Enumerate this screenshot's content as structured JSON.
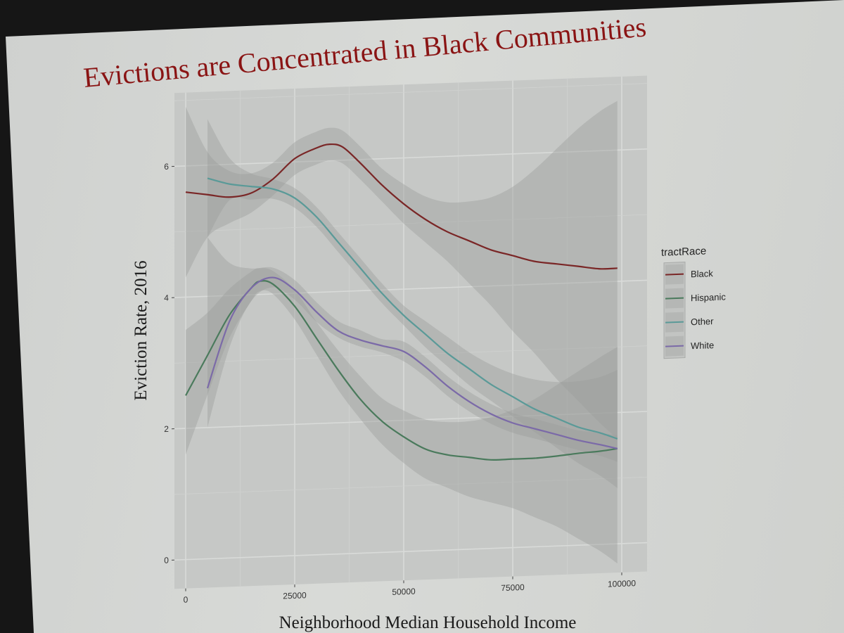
{
  "slide": {
    "title": "Evictions are Concentrated in Black Communities"
  },
  "chart_data": {
    "type": "line",
    "title": "Evictions are Concentrated in Black Communities",
    "xlabel": "Neighborhood Median Household Income",
    "ylabel": "Eviction Rate, 2016",
    "xlim": [
      0,
      100000
    ],
    "ylim": [
      -0.3,
      7.0
    ],
    "x_ticks": [
      0,
      25000,
      50000,
      75000,
      100000
    ],
    "x_tick_labels": [
      "0",
      "25000",
      "50000",
      "75000",
      "100000"
    ],
    "y_ticks": [
      0,
      2,
      4,
      6
    ],
    "y_tick_labels": [
      "0",
      "2",
      "4",
      "6"
    ],
    "grid": true,
    "legend": {
      "title": "tractRace",
      "position": "right"
    },
    "series": [
      {
        "name": "Black",
        "color": "#7a2626",
        "x": [
          0,
          5000,
          10000,
          15000,
          20000,
          25000,
          30000,
          33000,
          36000,
          40000,
          45000,
          50000,
          55000,
          60000,
          65000,
          70000,
          75000,
          80000,
          85000,
          90000,
          95000,
          99000
        ],
        "y": [
          5.6,
          5.55,
          5.5,
          5.55,
          5.75,
          6.05,
          6.2,
          6.25,
          6.2,
          5.95,
          5.6,
          5.3,
          5.05,
          4.85,
          4.7,
          4.55,
          4.45,
          4.35,
          4.3,
          4.25,
          4.2,
          4.2
        ],
        "lower": [
          4.3,
          4.9,
          5.1,
          5.25,
          5.5,
          5.8,
          5.95,
          6.0,
          5.95,
          5.7,
          5.35,
          5.0,
          4.7,
          4.4,
          4.05,
          3.7,
          3.3,
          2.95,
          2.55,
          2.2,
          1.85,
          1.6
        ],
        "upper": [
          6.9,
          6.2,
          5.9,
          5.85,
          6.0,
          6.3,
          6.45,
          6.5,
          6.45,
          6.2,
          5.85,
          5.6,
          5.4,
          5.3,
          5.3,
          5.35,
          5.5,
          5.75,
          6.05,
          6.35,
          6.6,
          6.75
        ]
      },
      {
        "name": "Hispanic",
        "color": "#4a7a5c",
        "x": [
          0,
          5000,
          10000,
          15000,
          17000,
          20000,
          25000,
          30000,
          35000,
          40000,
          45000,
          50000,
          55000,
          60000,
          65000,
          70000,
          75000,
          80000,
          85000,
          90000,
          95000,
          99000
        ],
        "y": [
          2.5,
          3.1,
          3.7,
          4.1,
          4.2,
          4.15,
          3.8,
          3.3,
          2.8,
          2.35,
          2.0,
          1.75,
          1.55,
          1.45,
          1.4,
          1.35,
          1.35,
          1.35,
          1.37,
          1.4,
          1.42,
          1.45
        ],
        "lower": [
          1.6,
          2.5,
          3.35,
          3.9,
          4.05,
          4.0,
          3.6,
          3.05,
          2.5,
          2.05,
          1.65,
          1.35,
          1.1,
          0.95,
          0.8,
          0.7,
          0.6,
          0.45,
          0.3,
          0.1,
          -0.1,
          -0.3
        ],
        "upper": [
          3.5,
          3.75,
          4.1,
          4.35,
          4.4,
          4.35,
          4.05,
          3.55,
          3.1,
          2.7,
          2.35,
          2.15,
          2.0,
          1.95,
          1.95,
          2.0,
          2.1,
          2.25,
          2.45,
          2.65,
          2.85,
          3.0
        ]
      },
      {
        "name": "Other",
        "color": "#5a9a98",
        "x": [
          5000,
          10000,
          15000,
          20000,
          25000,
          30000,
          35000,
          40000,
          45000,
          50000,
          55000,
          60000,
          65000,
          70000,
          75000,
          80000,
          85000,
          90000,
          95000,
          99000
        ],
        "y": [
          5.8,
          5.7,
          5.65,
          5.6,
          5.45,
          5.15,
          4.75,
          4.35,
          3.95,
          3.6,
          3.3,
          3.0,
          2.75,
          2.5,
          2.3,
          2.1,
          1.95,
          1.8,
          1.7,
          1.6
        ],
        "lower": [
          4.9,
          5.45,
          5.45,
          5.45,
          5.3,
          5.0,
          4.6,
          4.2,
          3.8,
          3.45,
          3.1,
          2.8,
          2.5,
          2.25,
          2.0,
          1.75,
          1.5,
          1.25,
          1.05,
          0.85
        ],
        "upper": [
          6.7,
          6.1,
          5.85,
          5.75,
          5.6,
          5.3,
          4.9,
          4.5,
          4.1,
          3.75,
          3.5,
          3.25,
          3.0,
          2.8,
          2.65,
          2.55,
          2.5,
          2.5,
          2.55,
          2.65
        ]
      },
      {
        "name": "White",
        "color": "#7b6aa8",
        "x": [
          5000,
          10000,
          15000,
          20000,
          25000,
          30000,
          35000,
          40000,
          45000,
          50000,
          55000,
          60000,
          65000,
          70000,
          75000,
          80000,
          85000,
          90000,
          95000,
          99000
        ],
        "y": [
          2.6,
          3.6,
          4.1,
          4.25,
          4.05,
          3.7,
          3.4,
          3.25,
          3.15,
          3.05,
          2.8,
          2.5,
          2.25,
          2.05,
          1.9,
          1.8,
          1.7,
          1.6,
          1.52,
          1.45
        ],
        "lower": [
          2.0,
          3.2,
          3.9,
          4.1,
          3.9,
          3.55,
          3.3,
          3.15,
          3.05,
          2.9,
          2.65,
          2.35,
          2.1,
          1.9,
          1.75,
          1.65,
          1.55,
          1.45,
          1.35,
          1.25
        ],
        "upper": [
          4.9,
          4.5,
          4.4,
          4.4,
          4.2,
          3.85,
          3.55,
          3.4,
          3.25,
          3.2,
          2.95,
          2.65,
          2.4,
          2.2,
          2.05,
          1.95,
          1.85,
          1.75,
          1.7,
          1.65
        ]
      }
    ]
  }
}
